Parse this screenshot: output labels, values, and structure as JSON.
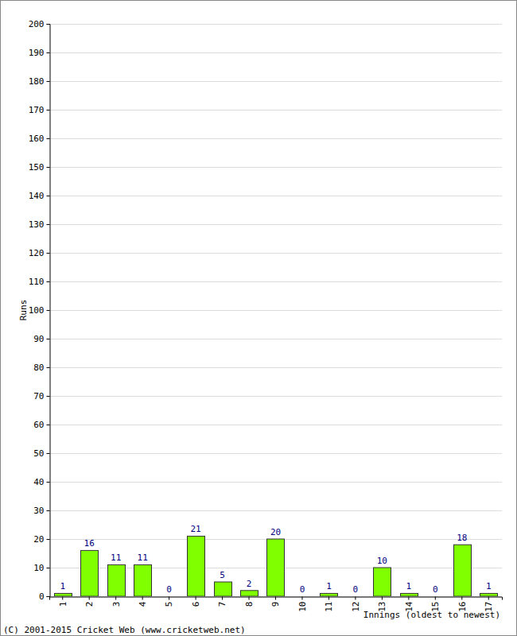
{
  "chart_data": {
    "type": "bar",
    "categories": [
      "1",
      "2",
      "3",
      "4",
      "5",
      "6",
      "7",
      "8",
      "9",
      "10",
      "11",
      "12",
      "13",
      "14",
      "15",
      "16",
      "17"
    ],
    "values": [
      1,
      16,
      11,
      11,
      0,
      21,
      5,
      2,
      20,
      0,
      1,
      0,
      10,
      1,
      0,
      18,
      1
    ],
    "color": "#80ff00",
    "ylim": [
      0,
      200
    ],
    "yticks": [
      0,
      10,
      20,
      30,
      40,
      50,
      60,
      70,
      80,
      90,
      100,
      110,
      120,
      130,
      140,
      150,
      160,
      170,
      180,
      190,
      200
    ],
    "grid": true,
    "data_labels": true,
    "x_label": "Innings (oldest to newest)",
    "y_label": "Runs",
    "annotations": [
      "(C) 2001-2015 Cricket Web (www.cricketweb.net)"
    ]
  }
}
